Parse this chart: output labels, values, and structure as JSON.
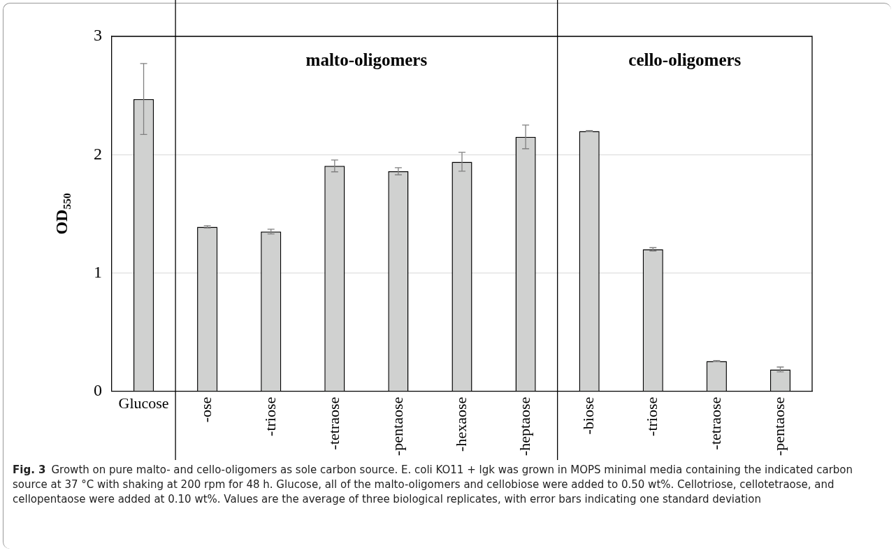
{
  "chart_data": {
    "type": "bar",
    "ylabel": "OD$_{550}$",
    "categories": [
      "Glucose",
      "-ose",
      "-triose",
      "-tetraose",
      "-pentaose",
      "-hexaose",
      "-heptaose",
      "-biose",
      "-triose",
      "-tetraose",
      "-pentaose"
    ],
    "values": [
      2.47,
      1.39,
      1.35,
      1.905,
      1.86,
      1.94,
      2.15,
      2.2,
      1.2,
      0.255,
      0.185
    ],
    "errors": [
      0.3,
      0.01,
      0.02,
      0.05,
      0.03,
      0.08,
      0.1,
      0.005,
      0.014,
      0.005,
      0.02
    ],
    "color": "#d0d1d0",
    "ylim": [
      0,
      3
    ],
    "yticks": [
      0,
      1,
      2,
      3
    ],
    "grid": "y",
    "annotations": [
      "malto-oligomers",
      "cello-oligomers",
      "Fig. 3",
      "Growth on pure malto- and cello-oligomers as sole carbon source. E. coli KO11 + lgk was grown in MOPS minimal media containing the indicated carbon source at 37 °C with shaking at 200 rpm for 48 h. Glucose, all of the malto-oligomers and cellobiose were added to 0.50 wt%. Cellotriose, cellotetraose, and cellopentaose were added at 0.10 wt%. Values are the average of three biological replicates, with error bars indicating one standard deviation"
    ]
  }
}
